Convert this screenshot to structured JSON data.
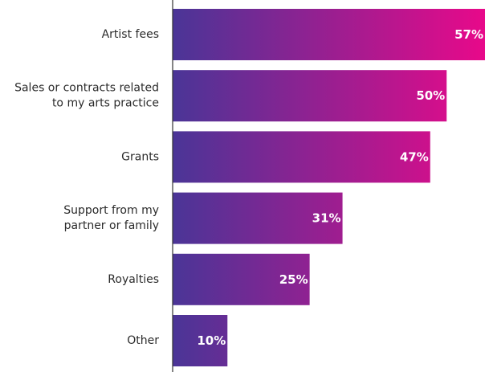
{
  "chart_data": {
    "type": "bar",
    "orientation": "horizontal",
    "title": "",
    "xlabel": "",
    "ylabel": "",
    "categories": [
      "Artist fees",
      "Sales or contracts related to my arts practice",
      "Grants",
      "Support from my partner or family",
      "Royalties",
      "Other"
    ],
    "category_lines": [
      [
        "Artist fees"
      ],
      [
        "Sales or contracts related",
        "to my arts practice"
      ],
      [
        "Grants"
      ],
      [
        "Support from my",
        "partner or family"
      ],
      [
        "Royalties"
      ],
      [
        "Other"
      ]
    ],
    "values": [
      57,
      50,
      47,
      31,
      25,
      10
    ],
    "value_labels": [
      "57%",
      "50%",
      "47%",
      "31%",
      "25%",
      "10%"
    ],
    "xlim": [
      0,
      57
    ],
    "grid": false,
    "legend": "none",
    "colors": {
      "bar_gradient_start": "#4a3597",
      "bar_gradient_end": "#e8098a",
      "axis": "#333333",
      "label_text": "#2b2b2b",
      "value_text": "#ffffff"
    }
  }
}
